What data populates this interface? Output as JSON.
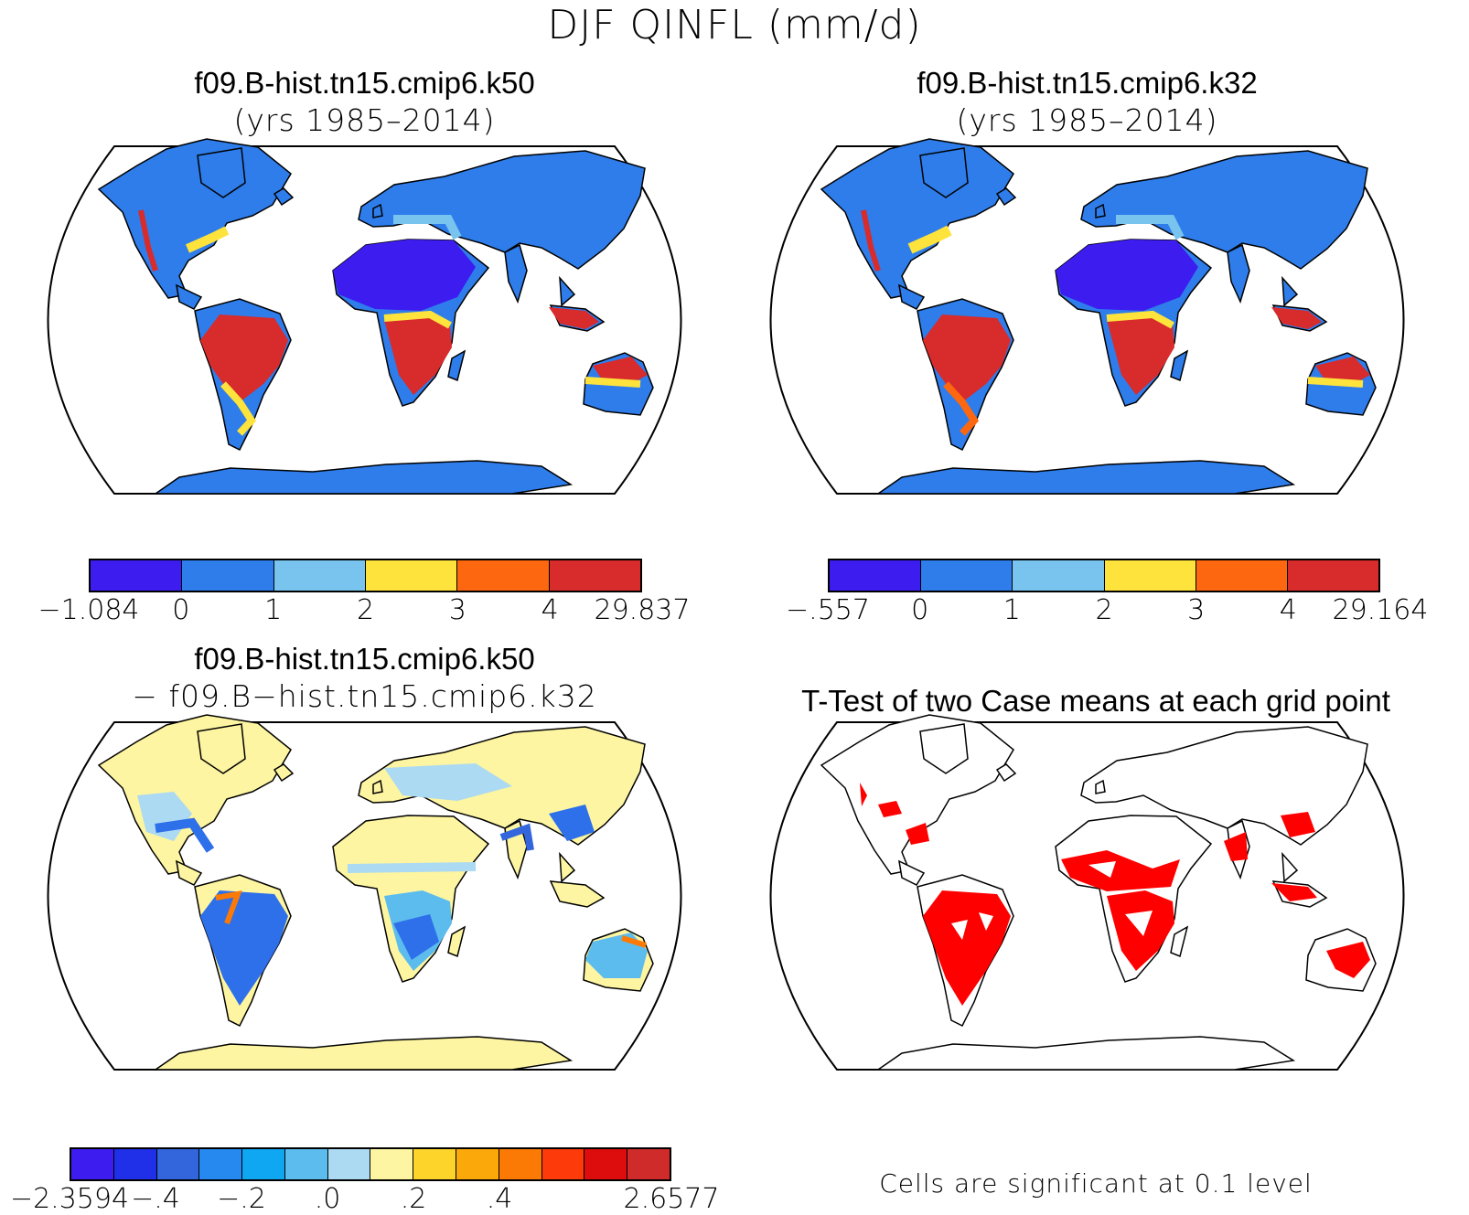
{
  "figure": {
    "title": "DJF QINFL (mm/d)",
    "note": "Cells are significant at 0.1 level"
  },
  "panels": [
    {
      "id": "k50",
      "title": "f09.B-hist.tn15.cmip6.k50",
      "subtitle": "(yrs 1985–2014)",
      "colorbar": {
        "colors": [
          "#3d1cf0",
          "#2e7deb",
          "#78c4ef",
          "#fde33c",
          "#fd6710",
          "#d82b2b"
        ],
        "labels": [
          "−1.084",
          "0",
          "1",
          "2",
          "3",
          "4",
          "29.837"
        ]
      }
    },
    {
      "id": "k32",
      "title": "f09.B-hist.tn15.cmip6.k32",
      "subtitle": "(yrs 1985–2014)",
      "colorbar": {
        "colors": [
          "#3d1cf0",
          "#2e7deb",
          "#78c4ef",
          "#fde33c",
          "#fd6710",
          "#d82b2b"
        ],
        "labels": [
          "−.557",
          "0",
          "1",
          "2",
          "3",
          "4",
          "29.164"
        ]
      }
    },
    {
      "id": "diff",
      "title": "f09.B-hist.tn15.cmip6.k50",
      "subtitle": "− f09.B−hist.tn15.cmip6.k32",
      "colorbar": {
        "colors": [
          "#3d1cf0",
          "#1f30e8",
          "#3366dd",
          "#2589ef",
          "#0fa7f2",
          "#5cbcee",
          "#acdaf2",
          "#fdf5a1",
          "#fcd42a",
          "#fba80a",
          "#fb7a06",
          "#fc3a0a",
          "#de0d0d",
          "#d02b2b"
        ],
        "labels": [
          "−2.3594",
          "−.4",
          "−.2",
          ".0",
          ".2",
          ".4",
          "2.6577"
        ]
      }
    },
    {
      "id": "ttest",
      "title": "T-Test of two Case means at each grid point",
      "colors": {
        "significant": "#ff0000"
      }
    }
  ]
}
